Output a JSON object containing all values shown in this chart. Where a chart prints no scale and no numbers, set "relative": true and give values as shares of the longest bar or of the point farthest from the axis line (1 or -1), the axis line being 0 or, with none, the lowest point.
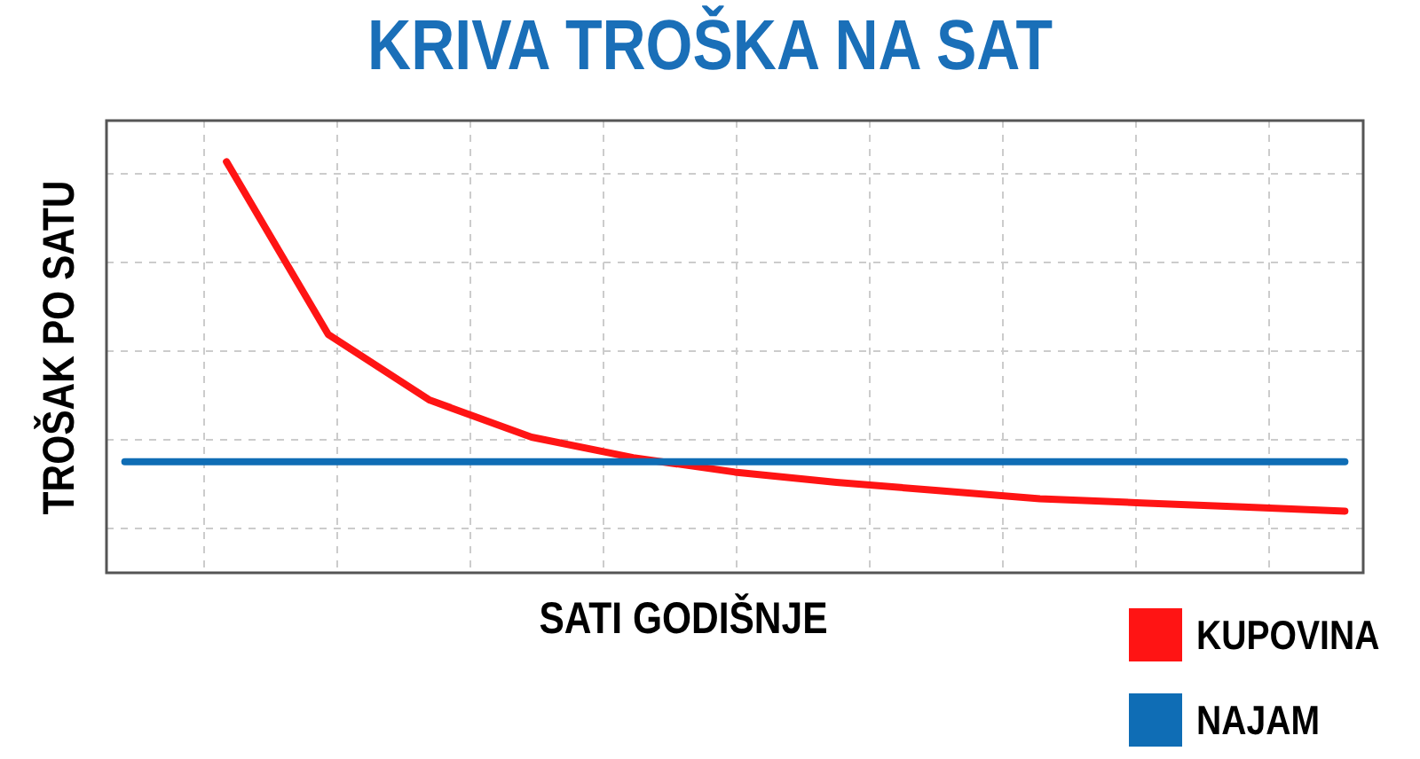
{
  "chart_data": {
    "type": "line",
    "title": "KRIVA TROŠKA NA SAT",
    "xlabel": "SATI GODIŠNJE",
    "ylabel": "TROŠAK PO SATU",
    "relative": true,
    "grid": true,
    "legend": "bottom right",
    "marker": "none",
    "line_style": "solid",
    "categories": [
      null,
      null,
      null,
      null,
      null,
      null,
      null,
      null,
      null,
      null,
      null,
      null,
      null
    ],
    "series": [
      {
        "name": "KUPOVINA",
        "color": "#ff1414",
        "values": [
          null,
          1,
          0.58,
          0.42,
          0.33,
          0.28,
          0.245,
          0.22,
          0.2,
          0.18,
          0.17,
          0.16,
          0.15
        ]
      },
      {
        "name": "NAJAM",
        "color": "#0f6db5",
        "values": [
          0.27,
          0.27,
          0.27,
          0.27,
          0.27,
          0.27,
          0.27,
          0.27,
          0.27,
          0.27,
          0.27,
          0.27,
          0.27
        ]
      }
    ]
  }
}
